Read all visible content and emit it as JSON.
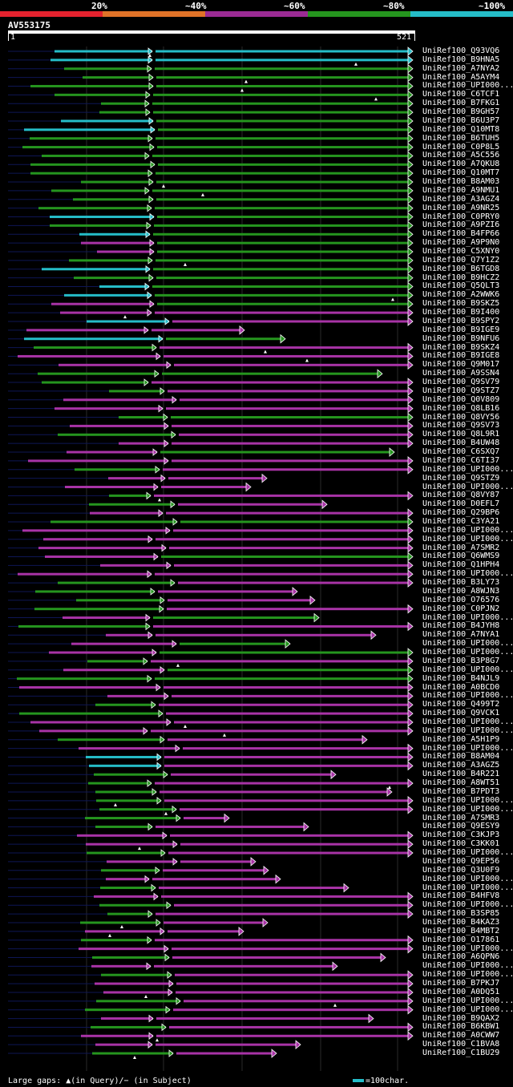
{
  "legend": {
    "items": [
      {
        "label": "20%",
        "color": "#e4222e"
      },
      {
        "label": "~40%",
        "color": "#e07328"
      },
      {
        "label": "~60%",
        "color": "#9b2b94"
      },
      {
        "label": "~80%",
        "color": "#25951e"
      },
      {
        "label": "~100%",
        "color": "#25bdc8"
      }
    ]
  },
  "query": {
    "id": "AV553175",
    "start": "1",
    "end": "521"
  },
  "colors": {
    "cyan": "#25bdc8",
    "green": "#25951e",
    "magenta": "#a833a6",
    "navy": "#0e1655",
    "grid": "#2a2a2a"
  },
  "hits": [
    "UniRef100_Q93VQ6",
    "UniRef100_B9HNA5",
    "UniRef100_A7NYA2",
    "UniRef100_A5AYM4",
    "UniRef100_UPI000...",
    "UniRef100_C6TCF1",
    "UniRef100_B7FKG1",
    "UniRef100_B9GH57",
    "UniRef100_B6U3P7",
    "UniRef100_Q10MT8",
    "UniRef100_B6TUH5",
    "UniRef100_C0P8L5",
    "UniRef100_A5C556",
    "UniRef100_A7QKU8",
    "UniRef100_Q10MT7",
    "UniRef100_B8AM03",
    "UniRef100_A9NMU1",
    "UniRef100_A3AGZ4",
    "UniRef100_A9NR25",
    "UniRef100_C0PRY0",
    "UniRef100_A9PZI6",
    "UniRef100_B4FP66",
    "UniRef100_A9P9N0",
    "UniRef100_C5XNY0",
    "UniRef100_Q7Y1Z2",
    "UniRef100_B6TGD8",
    "UniRef100_B9HCZ2",
    "UniRef100_Q5QLT3",
    "UniRef100_A2WWK6",
    "UniRef100_B9SKZ5",
    "UniRef100_B9I400",
    "UniRef100_B9SPY2",
    "UniRef100_B9IGE9",
    "UniRef100_B9NFU6",
    "UniRef100_B9SKZ4",
    "UniRef100_B9IGE8",
    "UniRef100_Q9M017",
    "UniRef100_A9SSN4",
    "UniRef100_Q9SV79",
    "UniRef100_Q9STZ7",
    "UniRef100_Q0V809",
    "UniRef100_Q8LB16",
    "UniRef100_Q8VY56",
    "UniRef100_Q9SV73",
    "UniRef100_Q8L9R1",
    "UniRef100_B4UW48",
    "UniRef100_C6SXQ7",
    "UniRef100_C6TI37",
    "UniRef100_UPI000...",
    "UniRef100_Q9STZ9",
    "UniRef100_UPI000...",
    "UniRef100_Q8VY87",
    "UniRef100_D0EFL7",
    "UniRef100_Q29BP6",
    "UniRef100_C3YA21",
    "UniRef100_UPI000...",
    "UniRef100_UPI000...",
    "UniRef100_A7SMR2",
    "UniRef100_Q6WMS9",
    "UniRef100_Q1HPH4",
    "UniRef100_UPI000...",
    "UniRef100_B3LY73",
    "UniRef100_A8WJN3",
    "UniRef100_O76576",
    "UniRef100_C0PJN2",
    "UniRef100_UPI000...",
    "UniRef100_B4JYH8",
    "UniRef100_A7NYA1",
    "UniRef100_UPI000...",
    "UniRef100_UPI000...",
    "UniRef100_B3P8G7",
    "UniRef100_UPI000...",
    "UniRef100_B4NJL9",
    "UniRef100_A0BCD0",
    "UniRef100_UPI000...",
    "UniRef100_Q499T2",
    "UniRef100_Q9VCK1",
    "UniRef100_UPI000...",
    "UniRef100_UPI000...",
    "UniRef100_A5H1P9",
    "UniRef100_UPI000...",
    "UniRef100_B8AM04",
    "UniRef100_A3AGZ5",
    "UniRef100_B4R221",
    "UniRef100_A8WT51",
    "UniRef100_B7PDT3",
    "UniRef100_UPI000...",
    "UniRef100_UPI000...",
    "UniRef100_A7SMR3",
    "UniRef100_Q9ESY9",
    "UniRef100_C3KJP3",
    "UniRef100_C3KK01",
    "UniRef100_UPI000...",
    "UniRef100_Q9EP56",
    "UniRef100_Q3U0F9",
    "UniRef100_UPI000...",
    "UniRef100_UPI000...",
    "UniRef100_B4HFV8",
    "UniRef100_UPI000...",
    "UniRef100_B3SP85",
    "UniRef100_B4KAZ3",
    "UniRef100_B4MBT2",
    "UniRef100_O17861",
    "UniRef100_UPI000...",
    "UniRef100_A6QPN6",
    "UniRef100_UPI000...",
    "UniRef100_UPI000...",
    "UniRef100_B7PKJ7",
    "UniRef100_A0DQ51",
    "UniRef100_UPI000...",
    "UniRef100_UPI000...",
    "UniRef100_B9QAX2",
    "UniRef100_B6KBW1",
    "UniRef100_A0CWW7",
    "UniRef100_C1BVA8",
    "UniRef100_C1BU29"
  ],
  "footer": {
    "gaps_label": "Large gaps: ▲(in Query)/− (in Subject)",
    "scale_label": "=100char."
  }
}
